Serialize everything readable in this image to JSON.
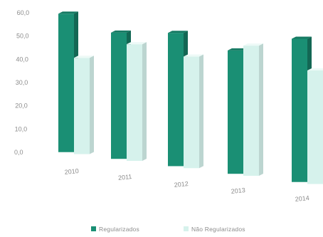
{
  "chart_data": {
    "type": "bar",
    "categories": [
      "2010",
      "2011",
      "2012",
      "2013",
      "2014"
    ],
    "series": [
      {
        "name": "Regularizados",
        "values": [
          59.0,
          51.5,
          52.0,
          46.0,
          51.0
        ],
        "color": "#1a8f74"
      },
      {
        "name": "Não Regularizados",
        "values": [
          40.5,
          47.0,
          43.0,
          48.0,
          40.0
        ],
        "color": "#d6f2ec"
      }
    ],
    "yticks": [
      "0,0",
      "10,0",
      "20,0",
      "30,0",
      "40,0",
      "50,0",
      "60,0"
    ],
    "ylim": [
      0,
      60
    ],
    "grid": false,
    "legend_position": "bottom-center",
    "title": "",
    "xlabel": "",
    "ylabel": ""
  }
}
